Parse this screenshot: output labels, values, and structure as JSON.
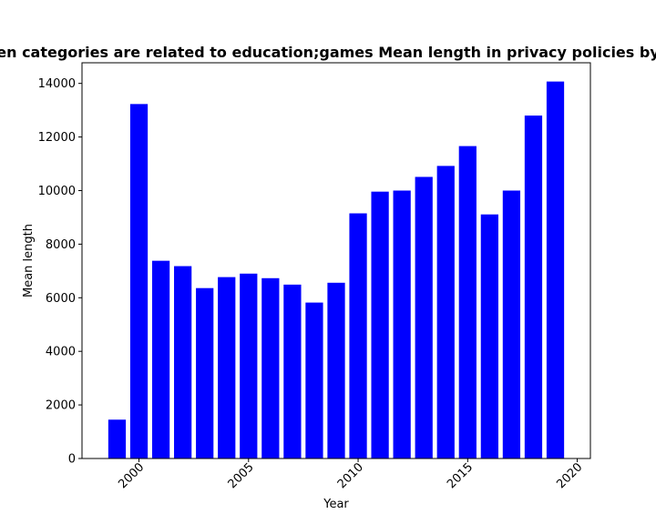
{
  "chart_data": {
    "type": "bar",
    "title": "en categories are related to education;games Mean length in privacy policies by",
    "xlabel": "Year",
    "ylabel": "Mean length",
    "bar_color": "#0000ff",
    "x": [
      1999,
      2000,
      2001,
      2002,
      2003,
      2004,
      2005,
      2006,
      2007,
      2008,
      2009,
      2010,
      2011,
      2012,
      2013,
      2014,
      2015,
      2016,
      2017,
      2018,
      2019
    ],
    "values": [
      1450,
      13230,
      7380,
      7180,
      6360,
      6770,
      6900,
      6730,
      6490,
      5820,
      6560,
      9150,
      9960,
      10000,
      10510,
      10920,
      11660,
      9110,
      10000,
      12800,
      14070
    ],
    "xlim": [
      1997.4,
      2020.6
    ],
    "ylim": [
      0,
      14770
    ],
    "xticks": [
      2000,
      2005,
      2010,
      2015,
      2020
    ],
    "xtick_labels": [
      "2000",
      "2005",
      "2010",
      "2015",
      "2020"
    ],
    "yticks": [
      0,
      2000,
      4000,
      6000,
      8000,
      10000,
      12000,
      14000
    ],
    "ytick_labels": [
      "0",
      "2000",
      "4000",
      "6000",
      "8000",
      "10000",
      "12000",
      "14000"
    ],
    "xtick_rotation": 45,
    "grid": false,
    "legend": "none"
  }
}
